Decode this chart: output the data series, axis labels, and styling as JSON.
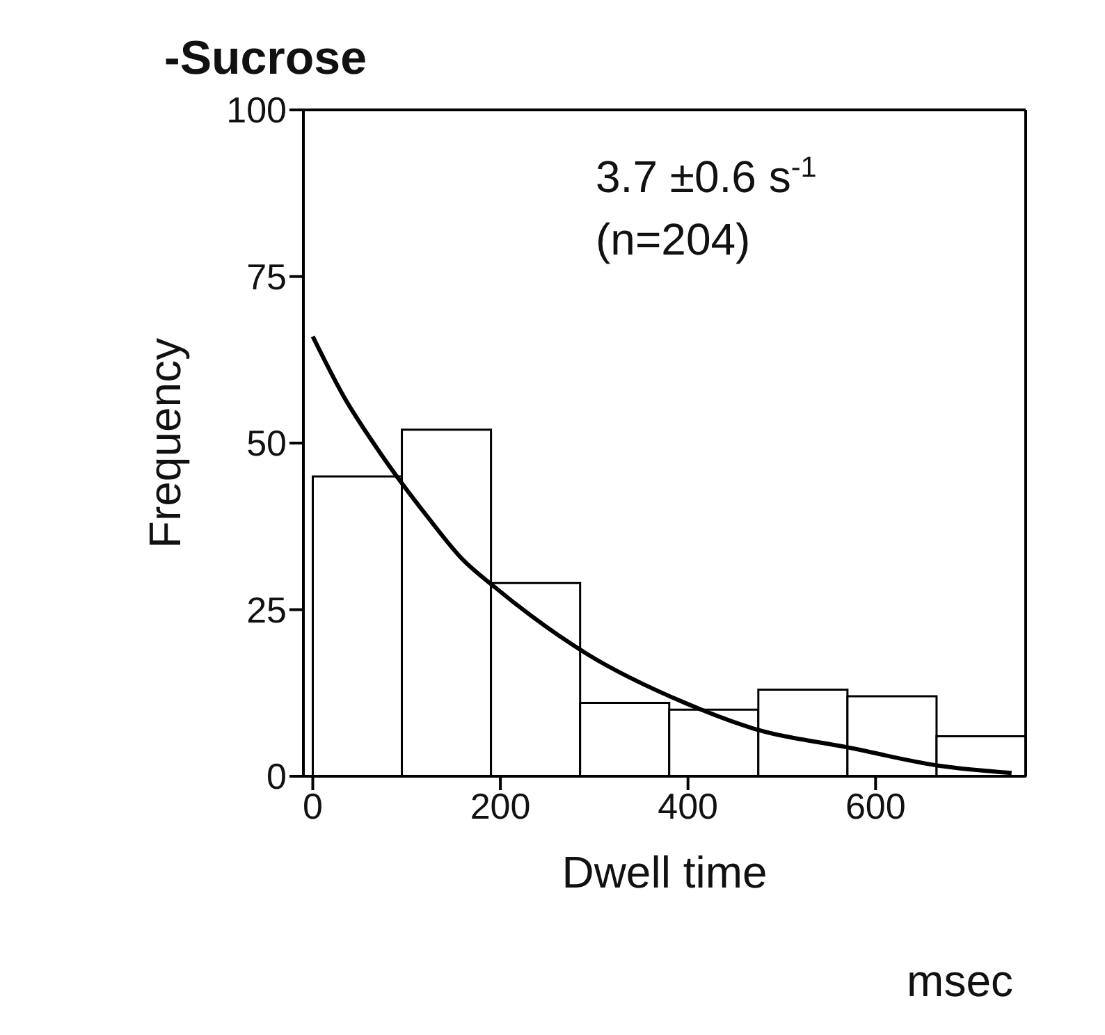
{
  "chart_data": {
    "type": "histogram",
    "title": "-Sucrose",
    "xlabel": "Dwell time",
    "ylabel": "Frequency",
    "annotations": [
      "3.7 ±0.6 s$^{-1}$",
      "(n=204)",
      "msec"
    ],
    "bins": [
      0,
      95,
      190,
      285,
      380,
      475,
      570,
      665,
      760
    ],
    "values": [
      45,
      52,
      29,
      11,
      10,
      13,
      12,
      6
    ],
    "color": "#ffffff",
    "series": [
      {
        "type": "line",
        "color": "#000000",
        "x": [
          0,
          33,
          71,
          122,
          160,
          193,
          293,
          397,
          469,
          575,
          667,
          745
        ],
        "values": [
          66,
          57,
          48.7,
          39,
          32.5,
          28.5,
          18.3,
          11,
          7.2,
          4.2,
          1.6,
          0.5
        ]
      }
    ],
    "xlim": [
      -10,
      760
    ],
    "xticks": [
      0,
      200,
      400,
      600
    ],
    "ylim": [
      0,
      100
    ],
    "yticks": [
      0,
      25,
      50,
      75,
      100
    ],
    "marker": "none",
    "line_style": "solid"
  }
}
